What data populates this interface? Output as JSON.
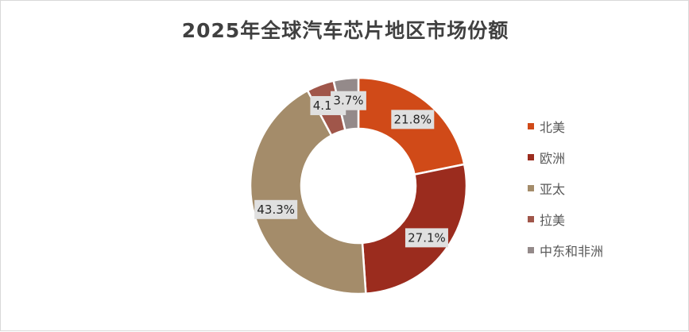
{
  "chart_data": {
    "type": "pie",
    "title": "2025年全球汽车芯片地区市场份额",
    "categories": [
      "北美",
      "欧洲",
      "亚太",
      "拉美",
      "中东和非洲"
    ],
    "values": [
      21.8,
      27.1,
      43.3,
      4.1,
      3.7
    ],
    "labels": [
      "21.8%",
      "27.1%",
      "43.3%",
      "4.1%",
      "3.7%"
    ],
    "colors": [
      "#D04A18",
      "#9B2C1E",
      "#A48C6A",
      "#A0564A",
      "#948A8A"
    ],
    "unit": "%",
    "legend": "right"
  }
}
